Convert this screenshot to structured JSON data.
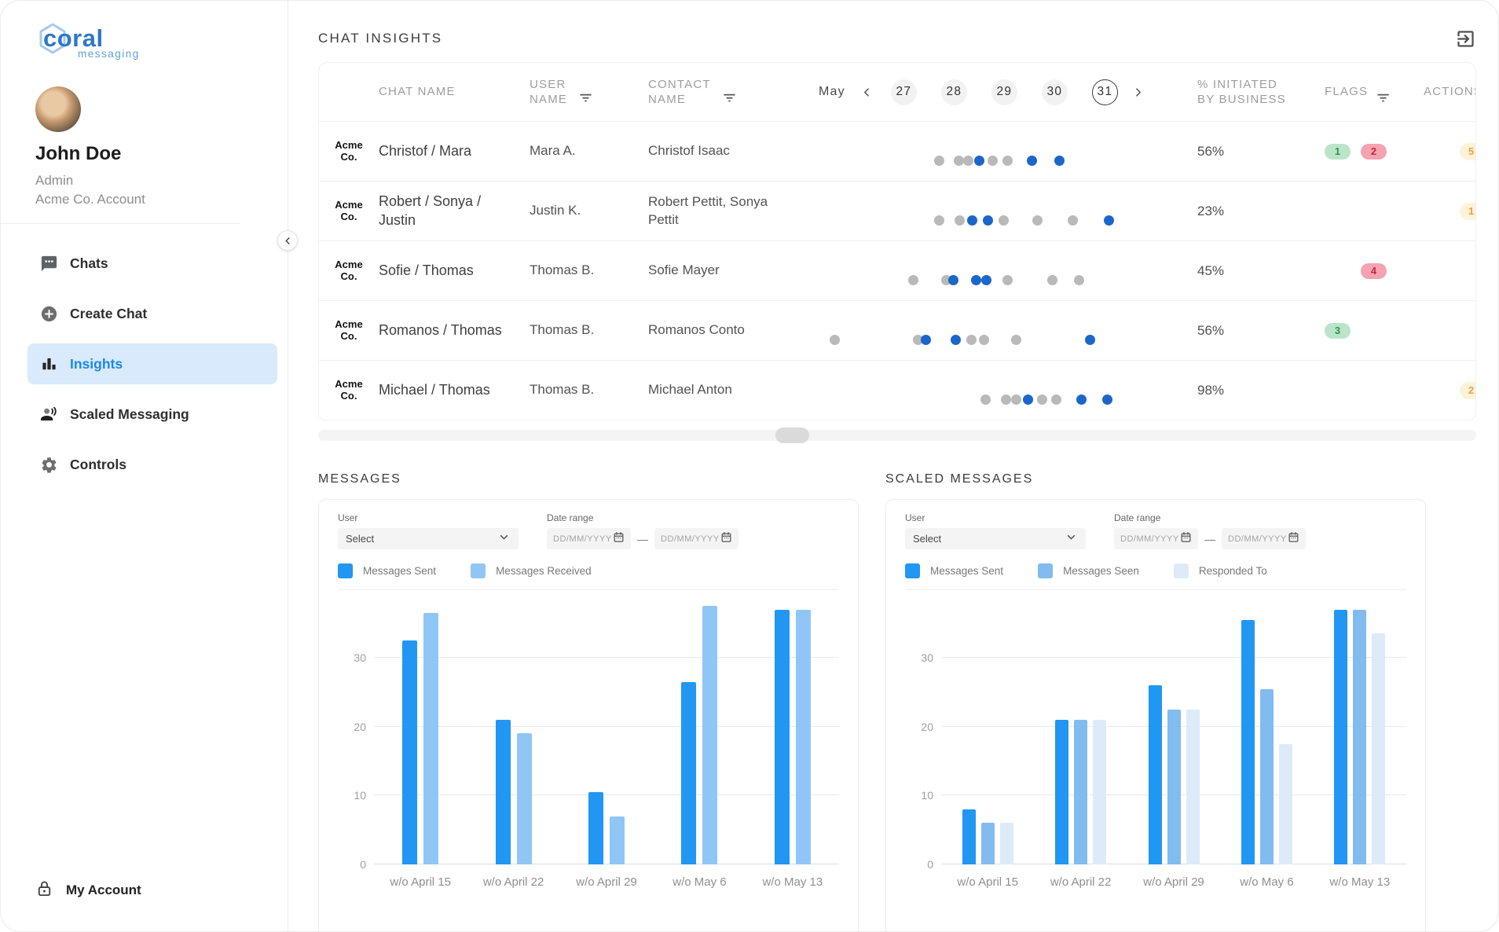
{
  "brand": {
    "name": "coral",
    "tagline": "messaging"
  },
  "profile": {
    "name": "John Doe",
    "role": "Admin",
    "account": "Acme Co. Account"
  },
  "nav": {
    "items": [
      {
        "label": "Chats",
        "icon": "chat-icon",
        "active": false
      },
      {
        "label": "Create Chat",
        "icon": "create-chat-icon",
        "active": false
      },
      {
        "label": "Insights",
        "icon": "insights-icon",
        "active": true
      },
      {
        "label": "Scaled Messaging",
        "icon": "scaled-messaging-icon",
        "active": false
      },
      {
        "label": "Controls",
        "icon": "controls-icon",
        "active": false
      }
    ],
    "footer_label": "My Account"
  },
  "header": {
    "title": "CHAT INSIGHTS"
  },
  "insights_table": {
    "columns": {
      "chat": "CHAT NAME",
      "user": "USER\nNAME",
      "contact": "CONTACT\nNAME",
      "initiated": "% INITIATED\nBY BUSINESS",
      "flags": "FLAGS",
      "actions": "ACTIONS"
    },
    "date_nav": {
      "month": "May",
      "days": [
        "27",
        "28",
        "29",
        "30",
        "31"
      ],
      "selected": "31"
    },
    "rows": [
      {
        "org": "Acme Co.",
        "chat": "Christof / Mara",
        "user": "Mara A.",
        "contact": "Christof Isaac",
        "initiated": "56%",
        "dots": [
          [
            153,
            "g"
          ],
          [
            178,
            "g"
          ],
          [
            190,
            "g"
          ],
          [
            204,
            "b"
          ],
          [
            221,
            "g"
          ],
          [
            240,
            "g"
          ],
          [
            271,
            "b"
          ],
          [
            306,
            "b"
          ]
        ],
        "flags": [
          {
            "count": "1",
            "type": "green"
          },
          {
            "count": "2",
            "type": "red"
          }
        ],
        "action": "5"
      },
      {
        "org": "Acme Co.",
        "chat": "Robert / Sonya / Justin",
        "user": "Justin K.",
        "contact": "Robert Pettit, Sonya Pettit",
        "initiated": "23%",
        "dots": [
          [
            153,
            "g"
          ],
          [
            179,
            "g"
          ],
          [
            195,
            "b"
          ],
          [
            215,
            "b"
          ],
          [
            235,
            "g"
          ],
          [
            278,
            "g"
          ],
          [
            323,
            "g"
          ],
          [
            369,
            "b"
          ]
        ],
        "flags": [],
        "action": "1"
      },
      {
        "org": "Acme Co.",
        "chat": "Sofie / Thomas",
        "user": "Thomas B.",
        "contact": "Sofie Mayer",
        "initiated": "45%",
        "dots": [
          [
            120,
            "g"
          ],
          [
            162,
            "g"
          ],
          [
            171,
            "b"
          ],
          [
            200,
            "b"
          ],
          [
            213,
            "b"
          ],
          [
            240,
            "g"
          ],
          [
            297,
            "g"
          ],
          [
            331,
            "g"
          ]
        ],
        "flags": [
          {
            "count": "4",
            "type": "red"
          }
        ],
        "action": null
      },
      {
        "org": "Acme Co.",
        "chat": "Romanos / Thomas",
        "user": "Thomas B.",
        "contact": "Romanos Conto",
        "initiated": "56%",
        "dots": [
          [
            20,
            "g"
          ],
          [
            126,
            "g"
          ],
          [
            136,
            "b"
          ],
          [
            174,
            "b"
          ],
          [
            194,
            "g"
          ],
          [
            210,
            "g"
          ],
          [
            251,
            "g"
          ],
          [
            345,
            "b"
          ]
        ],
        "flags": [
          {
            "count": "3",
            "type": "green"
          }
        ],
        "action": null
      },
      {
        "org": "Acme Co.",
        "chat": "Michael / Thomas",
        "user": "Thomas B.",
        "contact": "Michael Anton",
        "initiated": "98%",
        "dots": [
          [
            212,
            "g"
          ],
          [
            238,
            "g"
          ],
          [
            251,
            "g"
          ],
          [
            266,
            "b"
          ],
          [
            284,
            "g"
          ],
          [
            302,
            "g"
          ],
          [
            334,
            "b"
          ],
          [
            367,
            "b"
          ]
        ],
        "flags": [],
        "action": "2"
      }
    ]
  },
  "sections": {
    "messages_title": "MESSAGES",
    "scaled_title": "SCALED MESSAGES"
  },
  "chart_controls": {
    "user_label": "User",
    "user_value": "Select",
    "date_label": "Date range",
    "date_placeholder": "DD/MM/YYYY",
    "range_separator": "—"
  },
  "chart_data": [
    {
      "type": "bar",
      "title": "MESSAGES",
      "categories": [
        "w/o April 15",
        "w/o April 22",
        "w/o April 29",
        "w/o May 6",
        "w/o May 13"
      ],
      "series": [
        {
          "name": "Messages Sent",
          "color": "#2196F3",
          "values": [
            32.5,
            21,
            10.5,
            26.5,
            37
          ]
        },
        {
          "name": "Messages Received",
          "color": "#90C6F5",
          "values": [
            36.5,
            19,
            7,
            37.5,
            37
          ]
        }
      ],
      "xlabel": "",
      "ylabel": "",
      "yticks": [
        0,
        10,
        20,
        30
      ],
      "ylim": [
        0,
        38
      ],
      "grid": true,
      "legend_position": "top"
    },
    {
      "type": "bar",
      "title": "SCALED MESSAGES",
      "categories": [
        "w/o April 15",
        "w/o April 22",
        "w/o April 29",
        "w/o May 6",
        "w/o May 13"
      ],
      "series": [
        {
          "name": "Messages Sent",
          "color": "#2196F3",
          "values": [
            8,
            21,
            26,
            35.5,
            37
          ]
        },
        {
          "name": "Messages Seen",
          "color": "#82BBEF",
          "values": [
            6,
            21,
            22.5,
            25.5,
            37
          ]
        },
        {
          "name": "Responded To",
          "color": "#DDEBF9",
          "values": [
            6,
            21,
            22.5,
            17.5,
            33.5
          ]
        }
      ],
      "xlabel": "",
      "ylabel": "",
      "yticks": [
        0,
        10,
        20,
        30
      ],
      "ylim": [
        0,
        38
      ],
      "grid": true,
      "legend_position": "top"
    }
  ],
  "colors": {
    "accent": "#1E88E5",
    "nav_active_bg": "#D8EAFB",
    "dot_active": "#1B66C9",
    "dot_inactive": "#B9B9B9",
    "flag_green_bg": "#BBE5C9",
    "flag_green_text": "#2F9055",
    "flag_red_bg": "#F5A2B1",
    "flag_red_text": "#BB2C49",
    "action_bg": "#FDF3DA",
    "action_text": "#E9A33C"
  }
}
